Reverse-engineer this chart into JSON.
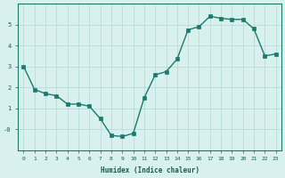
{
  "x": [
    0,
    1,
    2,
    3,
    4,
    5,
    6,
    7,
    8,
    9,
    10,
    11,
    12,
    13,
    14,
    15,
    16,
    17,
    18,
    19,
    20,
    21,
    22,
    23
  ],
  "y": [
    3.0,
    1.9,
    1.7,
    1.6,
    1.2,
    1.2,
    1.1,
    0.5,
    -0.3,
    -0.35,
    -0.2,
    1.5,
    2.6,
    2.75,
    3.35,
    4.75,
    4.9,
    5.4,
    5.3,
    5.25,
    5.25,
    4.8,
    3.5,
    3.6
  ],
  "xlabel": "Humidex (Indice chaleur)",
  "line_color": "#1a7a6e",
  "marker_color": "#1a7a6e",
  "bg_color": "#d8f0ee",
  "grid_color": "#b0d8d4",
  "axis_color": "#1a7a6e",
  "tick_color": "#1a5c52",
  "ylim": [
    -1.0,
    6.0
  ],
  "xlim_min": -0.5,
  "xlim_max": 23.5,
  "ytick_vals": [
    0,
    1,
    2,
    3,
    4,
    5
  ],
  "ytick_labels": [
    "-0",
    "1",
    "2",
    "3",
    "4",
    "5"
  ],
  "xtick_vals": [
    0,
    1,
    2,
    3,
    4,
    5,
    6,
    7,
    8,
    9,
    10,
    11,
    12,
    13,
    14,
    15,
    16,
    17,
    18,
    19,
    20,
    21,
    22,
    23
  ],
  "xtick_labels": [
    "0",
    "1",
    "2",
    "3",
    "4",
    "5",
    "6",
    "7",
    "8",
    "9",
    "10",
    "11",
    "12",
    "13",
    "14",
    "15",
    "16",
    "17",
    "18",
    "19",
    "20",
    "21",
    "22",
    "23"
  ]
}
